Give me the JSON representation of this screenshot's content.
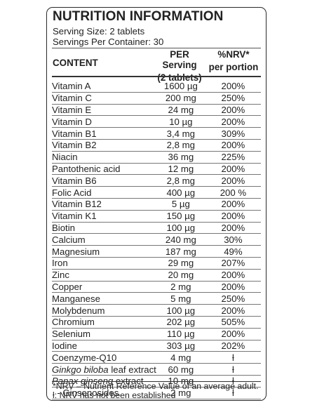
{
  "title": "NUTRITION INFORMATION",
  "serving_size": "Serving Size: 2 tablets",
  "servings_per_container": "Servings Per Container: 30",
  "headers": {
    "content": "CONTENT",
    "per_serving_line1": "PER Serving",
    "per_serving_line2": "(2 tablets)",
    "nrv_line1": "%NRV*",
    "nrv_line2": "per portion"
  },
  "rows": [
    {
      "name": "Vitamin A",
      "amount": "1600 µg",
      "nrv": "200%"
    },
    {
      "name": "Vitamin C",
      "amount": "200 mg",
      "nrv": "250%"
    },
    {
      "name": "Vitamin E",
      "amount": "24 mg",
      "nrv": "200%"
    },
    {
      "name": "Vitamin D",
      "amount": "10 µg",
      "nrv": "200%"
    },
    {
      "name": "Vitamin B1",
      "amount": "3,4 mg",
      "nrv": "309%"
    },
    {
      "name": "Vitamin B2",
      "amount": "2,8 mg",
      "nrv": "200%"
    },
    {
      "name": "Niacin",
      "amount": "36 mg",
      "nrv": "225%"
    },
    {
      "name": "Pantothenic acid",
      "amount": "12 mg",
      "nrv": "200%"
    },
    {
      "name": "Vitamin B6",
      "amount": "2,8 mg",
      "nrv": "200%"
    },
    {
      "name": "Folic Acid",
      "amount": "400 µg",
      "nrv": "200 %"
    },
    {
      "name": "Vitamin B12",
      "amount": "5 µg",
      "nrv": "200%"
    },
    {
      "name": "Vitamin K1",
      "amount": "150 µg",
      "nrv": "200%"
    },
    {
      "name": "Biotin",
      "amount": "100 µg",
      "nrv": "200%"
    },
    {
      "name": "Calcium",
      "amount": "240 mg",
      "nrv": "30%"
    },
    {
      "name": "Magnesium",
      "amount": "187 mg",
      "nrv": "49%"
    },
    {
      "name": "Iron",
      "amount": "29 mg",
      "nrv": "207%"
    },
    {
      "name": "Zinc",
      "amount": "20 mg",
      "nrv": "200%"
    },
    {
      "name": "Copper",
      "amount": "2 mg",
      "nrv": "200%"
    },
    {
      "name": "Manganese",
      "amount": "5 mg",
      "nrv": "250%"
    },
    {
      "name": "Molybdenum",
      "amount": "100 µg",
      "nrv": "200%"
    },
    {
      "name": "Chromium",
      "amount": "202 µg",
      "nrv": "505%"
    },
    {
      "name": "Selenium",
      "amount": "110 µg",
      "nrv": "200%"
    },
    {
      "name": "Iodine",
      "amount": "303 µg",
      "nrv": "202%"
    },
    {
      "name": "Coenzyme-Q10",
      "amount": "4 mg",
      "nrv": "ƚ"
    },
    {
      "name_italic": "Ginkgo biloba",
      "name_rest": " leaf extract",
      "amount": "60 mg",
      "nrv": "ƚ"
    },
    {
      "name_italic": "Panax ginseng",
      "name_rest": " extract",
      "amount": "10 mg",
      "nrv": "ƚ"
    },
    {
      "name": "  - Ginsenosides",
      "amount": "2 mg",
      "nrv": "ƚ"
    }
  ],
  "footnotes": {
    "nrv": "*NRV – Nutrient Reference Value of an average adult.",
    "not_established": "ƚ: NRV has not been established"
  }
}
